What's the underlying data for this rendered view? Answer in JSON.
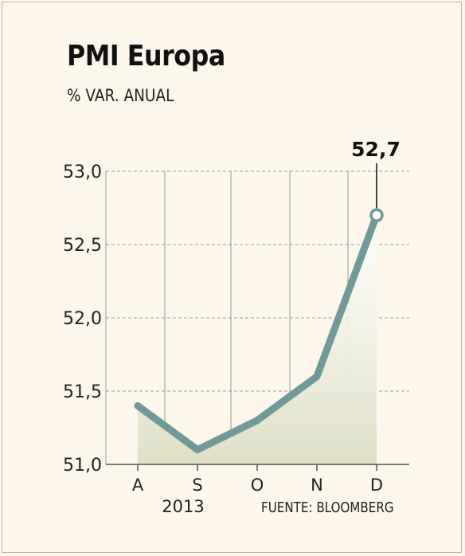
{
  "title": "PMI Europa",
  "subtitle": "% VAR. ANUAL",
  "source": "FUENTE: BLOOMBERG",
  "colors": {
    "background": "#fdf6ea",
    "line": "#6f9a98",
    "area_top": "#ffffff",
    "area_bottom": "#dfe0c6",
    "grid": "#9a9a9a"
  },
  "chart_data": {
    "type": "line",
    "categories": [
      "A",
      "S",
      "O",
      "N",
      "D"
    ],
    "year_label": "2013",
    "values": [
      51.4,
      51.1,
      51.3,
      51.6,
      52.7
    ],
    "ylim": [
      51.0,
      53.0
    ],
    "yticks": [
      53.0,
      52.5,
      52.0,
      51.5,
      51.0
    ],
    "ytick_labels": [
      "53,0",
      "52,5",
      "52,0",
      "51,5",
      "51,0"
    ],
    "callout_label": "52,7",
    "grid": true
  }
}
